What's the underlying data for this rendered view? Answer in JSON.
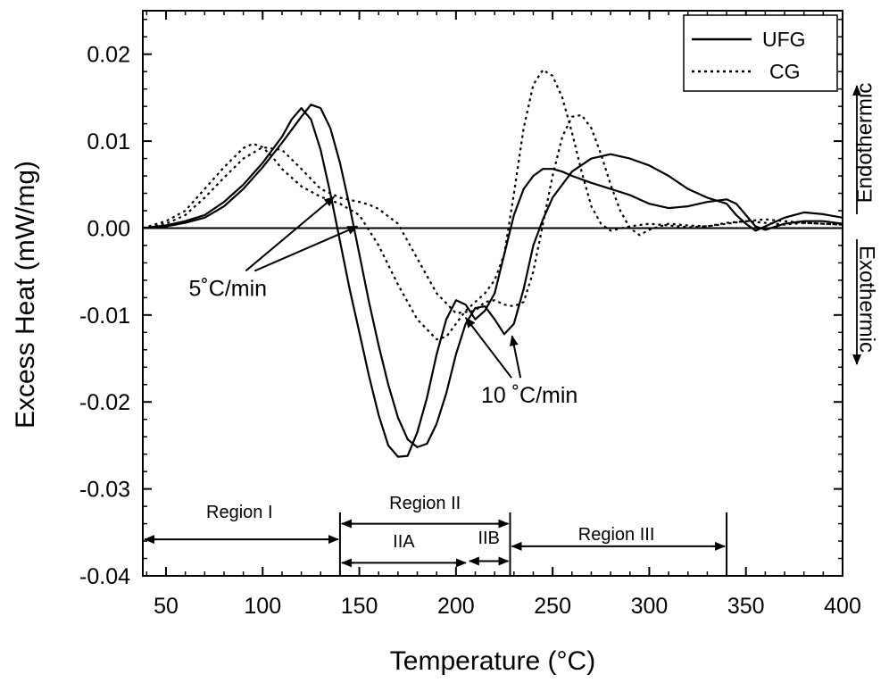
{
  "chart_data": {
    "type": "line",
    "xlabel": "Temperature (°C)",
    "ylabel": "Excess Heat (mW/mg)",
    "xlim": [
      38,
      400
    ],
    "ylim": [
      -0.04,
      0.025
    ],
    "x_ticks": [
      50,
      100,
      150,
      200,
      250,
      300,
      350,
      400
    ],
    "x_tick_labels": [
      "50",
      "100",
      "150",
      "200",
      "250",
      "300",
      "350",
      "400"
    ],
    "y_ticks": [
      -0.04,
      -0.03,
      -0.02,
      -0.01,
      0.0,
      0.01,
      0.02
    ],
    "y_tick_labels": [
      "-0.04",
      "-0.03",
      "-0.02",
      "-0.01",
      "0.00",
      "0.01",
      "0.02"
    ],
    "grid": false,
    "legend_position": "top-right",
    "series": [
      {
        "name": "UFG",
        "style": "solid",
        "x": [
          38,
          50,
          60,
          70,
          80,
          90,
          100,
          110,
          115,
          120,
          125,
          130,
          135,
          140,
          145,
          150,
          155,
          160,
          165,
          170,
          175,
          180,
          185,
          190,
          195,
          200,
          205,
          210,
          215,
          220,
          225,
          230,
          235,
          240,
          245,
          250,
          255,
          260,
          270,
          280,
          290,
          300,
          310,
          320,
          330,
          340,
          345,
          350,
          355,
          360,
          370,
          380,
          390,
          400
        ],
        "y": [
          0.0,
          0.0003,
          0.0008,
          0.0015,
          0.003,
          0.005,
          0.0075,
          0.0105,
          0.0125,
          0.0138,
          0.0125,
          0.009,
          0.004,
          -0.0015,
          -0.007,
          -0.012,
          -0.017,
          -0.0215,
          -0.025,
          -0.0263,
          -0.0262,
          -0.0235,
          -0.0195,
          -0.0145,
          -0.0105,
          -0.0083,
          -0.0088,
          -0.0105,
          -0.0095,
          -0.0075,
          -0.003,
          0.0015,
          0.0045,
          0.006,
          0.0068,
          0.0068,
          0.0065,
          0.006,
          0.0052,
          0.0045,
          0.0038,
          0.0028,
          0.0023,
          0.0025,
          0.003,
          0.0033,
          0.0028,
          0.0015,
          0.0002,
          -0.0002,
          0.0005,
          0.0008,
          0.0008,
          0.0005
        ]
      },
      {
        "name": "",
        "style": "solid",
        "x": [
          38,
          50,
          60,
          70,
          80,
          90,
          100,
          110,
          120,
          125,
          130,
          135,
          140,
          145,
          150,
          155,
          160,
          165,
          170,
          175,
          180,
          185,
          190,
          195,
          200,
          205,
          210,
          215,
          220,
          225,
          230,
          235,
          240,
          245,
          250,
          260,
          270,
          280,
          290,
          300,
          310,
          320,
          330,
          340,
          345,
          350,
          355,
          360,
          370,
          380,
          390,
          400
        ],
        "y": [
          0.0,
          0.0002,
          0.0006,
          0.0012,
          0.0025,
          0.0045,
          0.007,
          0.0098,
          0.0128,
          0.0142,
          0.0138,
          0.0115,
          0.0075,
          0.0025,
          -0.003,
          -0.0085,
          -0.0135,
          -0.018,
          -0.0218,
          -0.0243,
          -0.0252,
          -0.0248,
          -0.0225,
          -0.019,
          -0.0145,
          -0.011,
          -0.0092,
          -0.009,
          -0.0105,
          -0.0122,
          -0.011,
          -0.007,
          -0.002,
          0.001,
          0.0035,
          0.0065,
          0.008,
          0.0085,
          0.008,
          0.0072,
          0.006,
          0.0045,
          0.0035,
          0.0028,
          0.0015,
          0.0005,
          -0.0003,
          0.0002,
          0.0012,
          0.0018,
          0.0016,
          0.0012
        ]
      },
      {
        "name": "CG",
        "style": "dotted",
        "x": [
          38,
          50,
          60,
          70,
          80,
          90,
          95,
          100,
          105,
          110,
          120,
          130,
          140,
          150,
          160,
          170,
          180,
          190,
          195,
          200,
          205,
          210,
          215,
          220,
          225,
          230,
          235,
          240,
          245,
          250,
          255,
          260,
          265,
          270,
          275,
          280,
          290,
          300,
          310,
          320,
          330,
          340,
          350,
          360,
          370,
          380,
          390,
          400
        ],
        "y": [
          0.0,
          0.0008,
          0.002,
          0.0045,
          0.007,
          0.0092,
          0.0097,
          0.0093,
          0.0082,
          0.0068,
          0.0048,
          0.0036,
          0.0028,
          0.0015,
          -0.002,
          -0.0065,
          -0.0105,
          -0.0128,
          -0.0125,
          -0.011,
          -0.0095,
          -0.0085,
          -0.0075,
          -0.006,
          -0.003,
          0.004,
          0.0115,
          0.0165,
          0.0182,
          0.0175,
          0.015,
          0.011,
          0.0065,
          0.0025,
          0.0005,
          -0.0003,
          0.0002,
          0.0005,
          0.0003,
          0.0001,
          0.0002,
          0.0006,
          0.0008,
          0.0006,
          0.0004,
          0.0006,
          0.0005,
          0.0004
        ]
      },
      {
        "name": "",
        "style": "dotted",
        "x": [
          38,
          50,
          60,
          70,
          80,
          90,
          100,
          110,
          120,
          130,
          140,
          150,
          155,
          160,
          170,
          180,
          190,
          200,
          210,
          215,
          220,
          225,
          230,
          235,
          240,
          245,
          250,
          255,
          260,
          265,
          270,
          275,
          280,
          285,
          290,
          295,
          300,
          310,
          320,
          330,
          340,
          350,
          360,
          370,
          380,
          390,
          400
        ],
        "y": [
          0.0,
          0.0005,
          0.0015,
          0.0035,
          0.0058,
          0.008,
          0.0093,
          0.009,
          0.0068,
          0.0045,
          0.0035,
          0.003,
          0.0027,
          0.0022,
          0.0005,
          -0.0035,
          -0.0075,
          -0.0098,
          -0.0095,
          -0.0085,
          -0.0083,
          -0.0088,
          -0.009,
          -0.0085,
          -0.005,
          0.0005,
          0.006,
          0.0105,
          0.0128,
          0.013,
          0.0115,
          0.0085,
          0.005,
          0.002,
          0.0,
          -0.0008,
          -0.0002,
          0.0005,
          0.0003,
          0.0002,
          0.0005,
          0.0008,
          0.001,
          0.0008,
          0.0006,
          0.0005,
          0.0004
        ]
      }
    ],
    "legend": [
      {
        "label": "UFG",
        "style": "solid"
      },
      {
        "label": "CG",
        "style": "dotted"
      }
    ],
    "zero_line": 0,
    "side_labels": {
      "up": "Endothermic",
      "down": "Exothermic"
    },
    "annotations": [
      {
        "text": "5˚C/min",
        "x": 82,
        "y": -0.0078,
        "arrows_to": [
          [
            137,
            0.0036
          ],
          [
            149,
            0.0002
          ]
        ]
      },
      {
        "text": "10 ˚C/min",
        "x": 238,
        "y": -0.0201,
        "arrows_to": [
          [
            205,
            -0.0103
          ],
          [
            229,
            -0.0124
          ]
        ]
      }
    ],
    "regions": [
      {
        "label": "Region I",
        "from": 38,
        "to": 140,
        "label_x": 88,
        "label_y": -0.0333,
        "arrow_y": -0.0358
      },
      {
        "label": "Region II",
        "from": 140,
        "to": 228,
        "label_x": 184,
        "label_y": -0.0323,
        "arrow_y": -0.034
      },
      {
        "label": "Region III",
        "from": 228,
        "to": 340,
        "label_x": 283,
        "label_y": -0.0359,
        "arrow_y": -0.0366
      },
      {
        "label": "IIA",
        "from": 140,
        "to": 206,
        "label_x": 173,
        "label_y": -0.0367,
        "arrow_y": -0.0385
      },
      {
        "label": "IIB",
        "from": 206,
        "to": 228,
        "label_x": 217,
        "label_y": -0.0363,
        "arrow_y": -0.0383
      }
    ],
    "region_dividers": [
      140,
      228,
      340
    ]
  }
}
